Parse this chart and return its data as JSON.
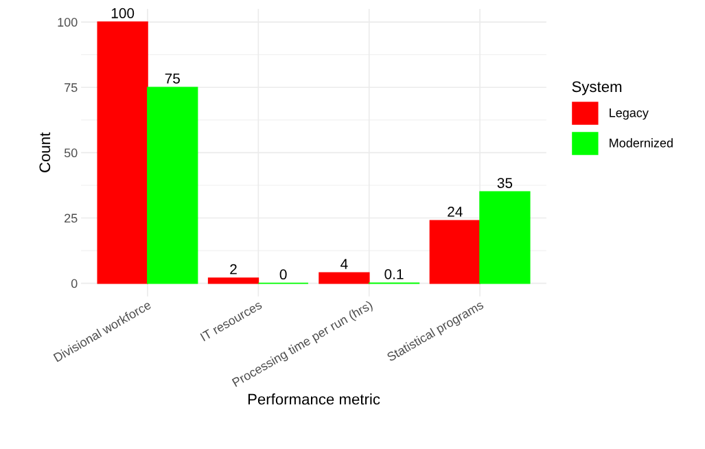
{
  "chart_data": {
    "type": "bar",
    "xlabel": "Performance metric",
    "ylabel": "Count",
    "legend_title": "System",
    "categories": [
      "Divisional workforce",
      "IT resources",
      "Processing time per run (hrs)",
      "Statistical programs"
    ],
    "series": [
      {
        "name": "Legacy",
        "color": "#ff0000",
        "values": [
          100,
          2,
          4,
          24
        ]
      },
      {
        "name": "Modernized",
        "color": "#00ff00",
        "values": [
          75,
          0,
          0.1,
          35
        ]
      }
    ],
    "ylim": [
      -5,
      105
    ],
    "yticks": [
      0,
      25,
      50,
      75,
      100
    ],
    "grid": true,
    "legend": "right",
    "data_labels": true
  }
}
